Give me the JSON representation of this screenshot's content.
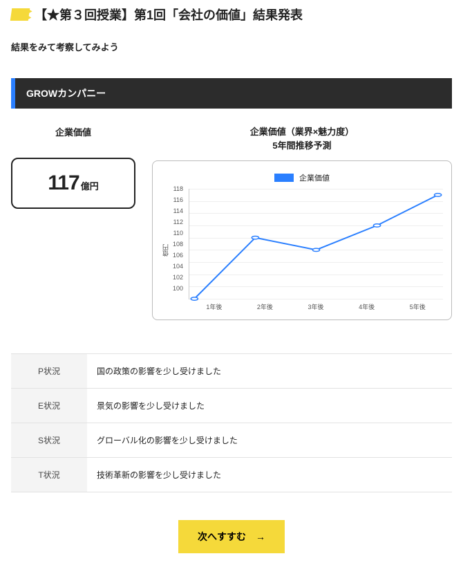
{
  "header": {
    "title": "【★第３回授業】第1回「会社の価値」結果発表",
    "subtitle": "結果をみて考察してみよう"
  },
  "company": {
    "section_label": "GROWカンパニー",
    "value_label": "企業価値",
    "value_number": "117",
    "value_unit": "億円"
  },
  "chart": {
    "title_line1": "企業価値（業界×魅力度）",
    "title_line2": "5年間推移予測",
    "legend_label": "企業価値",
    "y_axis_label": "億円",
    "type": "line",
    "x_labels": [
      "1年後",
      "2年後",
      "3年後",
      "4年後",
      "5年後"
    ],
    "values": [
      100,
      110,
      108,
      112,
      117
    ],
    "ylim": [
      100,
      118
    ],
    "y_ticks": [
      118,
      116,
      114,
      112,
      110,
      108,
      106,
      104,
      102,
      100
    ],
    "line_color": "#2a7fff",
    "marker_fill": "#ffffff",
    "marker_stroke": "#2a7fff",
    "marker_radius": 3,
    "line_width": 2,
    "grid_color": "#eeeeee",
    "axis_color": "#cccccc",
    "background_color": "#ffffff",
    "label_fontsize": 9
  },
  "pest": {
    "rows": [
      {
        "label": "P状況",
        "text": "国の政策の影響を少し受けました"
      },
      {
        "label": "E状況",
        "text": "景気の影響を少し受けました"
      },
      {
        "label": "S状況",
        "text": "グローバル化の影響を少し受けました"
      },
      {
        "label": "T状況",
        "text": "技術革新の影響を少し受けました"
      }
    ]
  },
  "next_button": {
    "label": "次へすすむ　→"
  },
  "colors": {
    "header_bg": "#2c2c2c",
    "accent_blue": "#2a7fff",
    "accent_yellow": "#f5d93a",
    "border_gray": "#bbbbbb",
    "table_row_border": "#e2e2e2",
    "table_label_bg": "#f4f4f4"
  }
}
